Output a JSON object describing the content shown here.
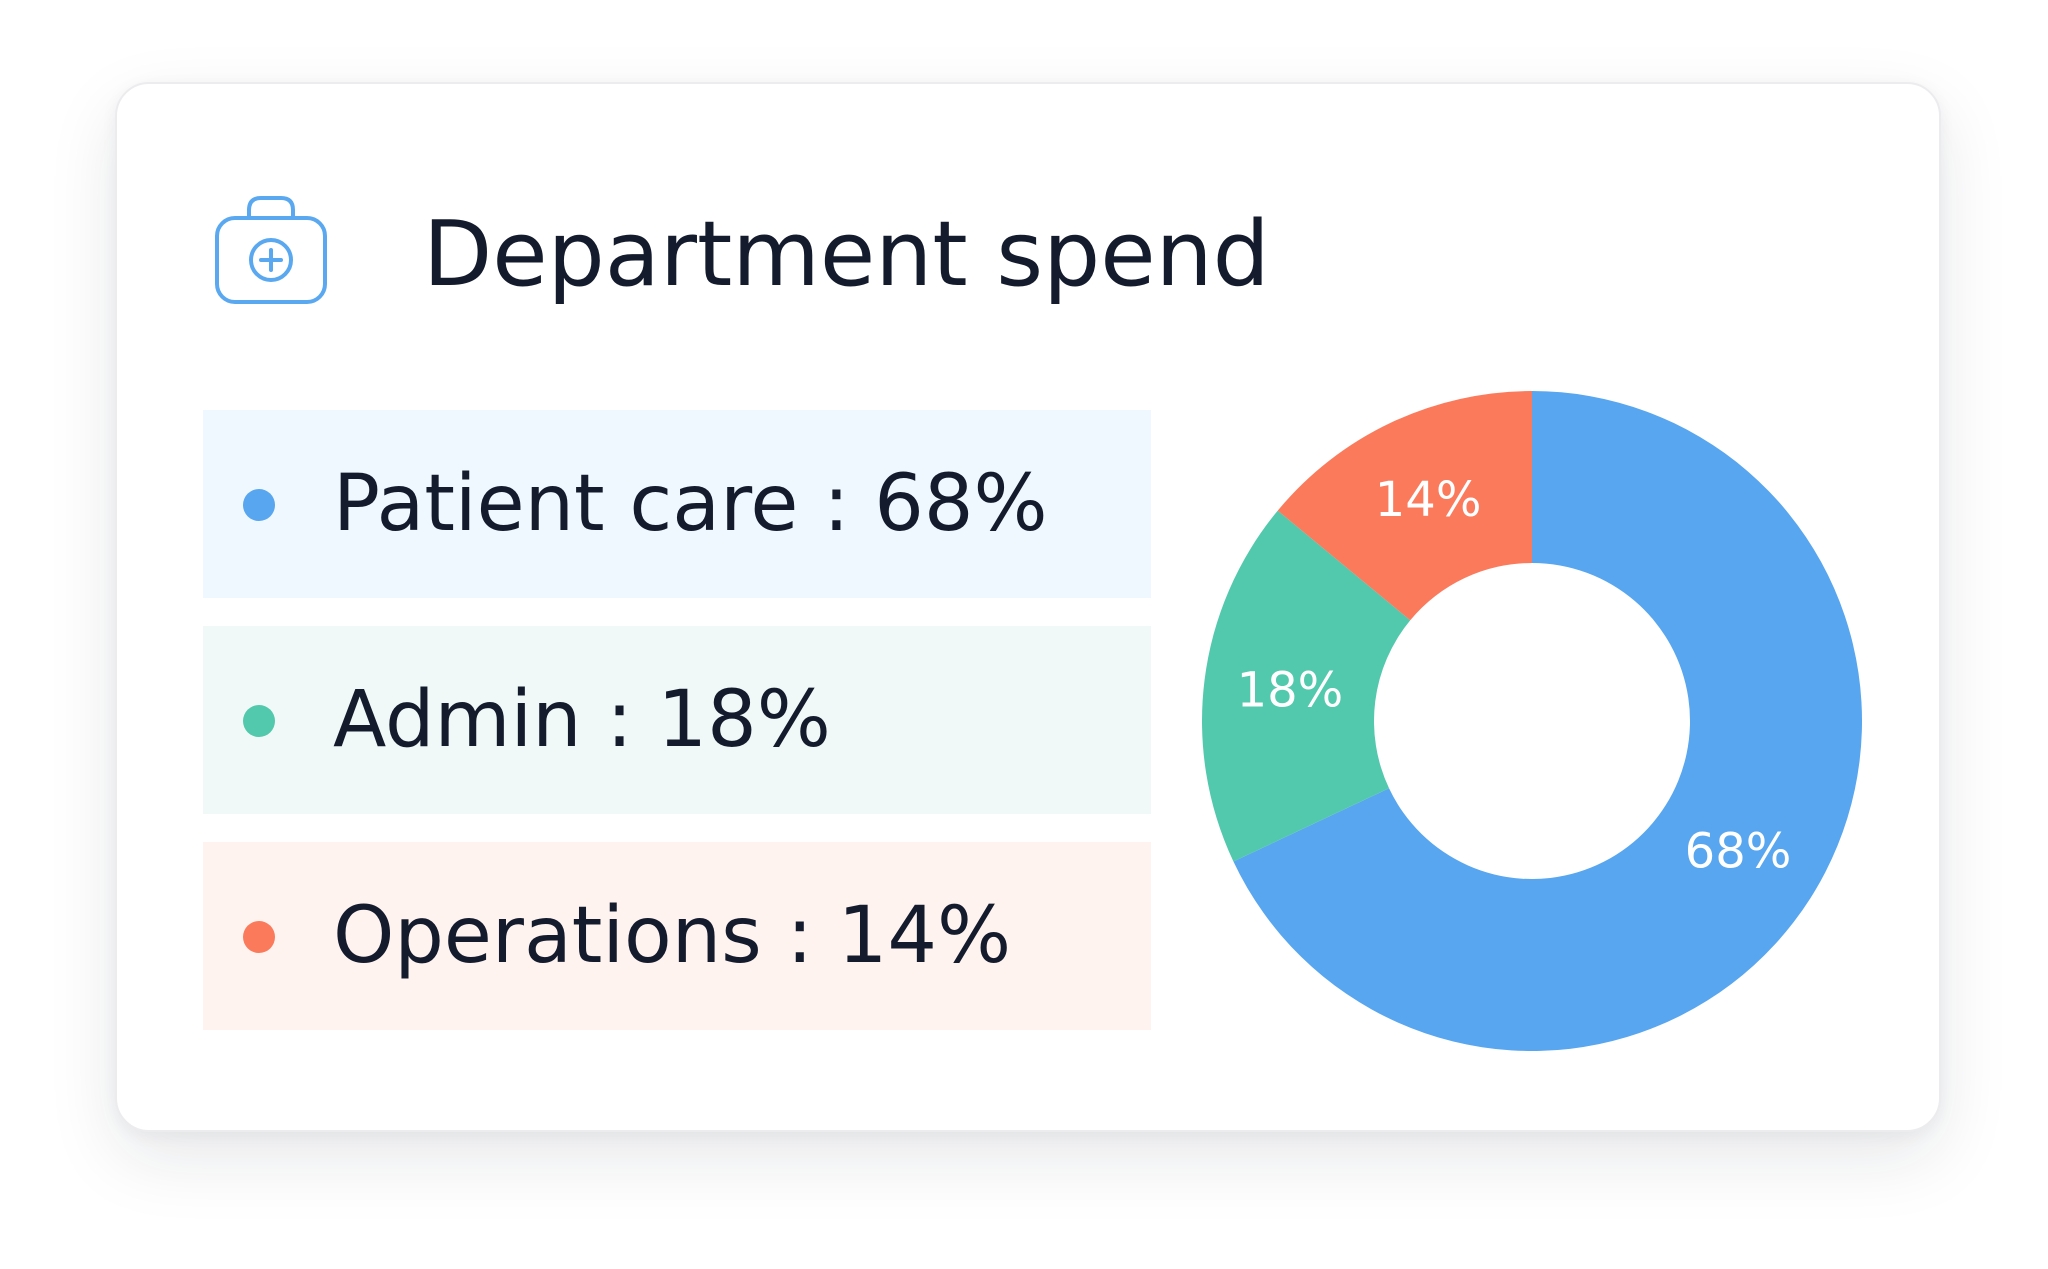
{
  "card": {
    "title": "Department spend",
    "icon": "medical-kit-icon"
  },
  "colors": {
    "patient_care": "#57a6ef",
    "admin": "#52c9ac",
    "operations": "#fb7a5b",
    "patient_care_bg": "#eff7ff",
    "admin_bg": "#f0f9f7",
    "operations_bg": "#fff3f0",
    "title": "#141b2d",
    "icon": "#5aa8f0"
  },
  "legend": [
    {
      "label": "Patient care",
      "separator": " : ",
      "value": "68%"
    },
    {
      "label": "Admin",
      "separator": " : ",
      "value": "18%"
    },
    {
      "label": "Operations",
      "separator": " : ",
      "value": "14%"
    }
  ],
  "chart_data": {
    "type": "pie",
    "variant": "donut",
    "title": "Department spend",
    "categories": [
      "Patient care",
      "Admin",
      "Operations"
    ],
    "values": [
      68,
      18,
      14
    ],
    "data_labels": [
      "68%",
      "18%",
      "14%"
    ],
    "colors": [
      "#57a6ef",
      "#52c9ac",
      "#fb7a5b"
    ],
    "label_color": "#ffffff",
    "start": "top",
    "direction": "clockwise",
    "legend_placement": "left"
  }
}
